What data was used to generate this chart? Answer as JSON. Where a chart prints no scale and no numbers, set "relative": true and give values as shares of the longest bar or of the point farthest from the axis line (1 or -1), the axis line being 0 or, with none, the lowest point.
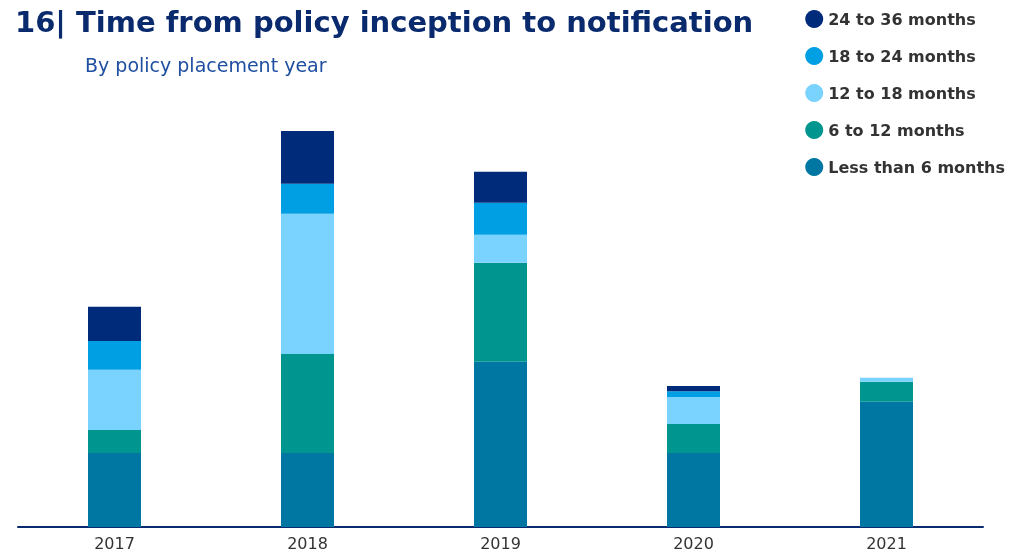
{
  "chart_data": {
    "type": "bar",
    "title": "16| Time from policy inception to notification",
    "subtitle": "By policy placement year",
    "categories": [
      "2017",
      "2018",
      "2019",
      "2020",
      "2021"
    ],
    "stacked": true,
    "relative": true,
    "legend": "top right",
    "series": [
      {
        "name": "Less than 6 months",
        "color": "#0077a3",
        "values": [
          0.187,
          0.187,
          0.417,
          0.187,
          0.316
        ]
      },
      {
        "name": "6 to 12 months",
        "color": "#00968f",
        "values": [
          0.058,
          0.25,
          0.25,
          0.073,
          0.051
        ]
      },
      {
        "name": "12 to 18 months",
        "color": "#7ad3ff",
        "values": [
          0.152,
          0.354,
          0.071,
          0.068,
          0.01
        ]
      },
      {
        "name": "18 to 24 months",
        "color": "#009fe3",
        "values": [
          0.073,
          0.076,
          0.081,
          0.015,
          0
        ]
      },
      {
        "name": "24 to 36 months",
        "color": "#002a7a",
        "values": [
          0.086,
          0.133,
          0.078,
          0.013,
          0
        ]
      }
    ]
  }
}
